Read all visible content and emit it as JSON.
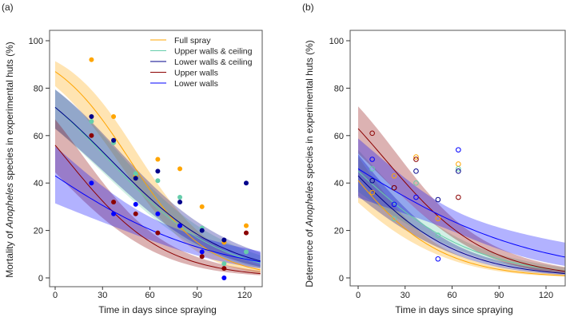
{
  "chart_data": [
    {
      "type": "line",
      "panel_label": "(a)",
      "xlabel": "Time in days since spraying",
      "ylabel_parts": [
        "Mortality of ",
        "Anopheles",
        " species in experimental huts (%)"
      ],
      "xlim": [
        -3,
        130
      ],
      "ylim": [
        0,
        100
      ],
      "xticks": [
        0,
        30,
        60,
        90,
        120
      ],
      "yticks": [
        0,
        20,
        40,
        60,
        80,
        100
      ],
      "point_style": "filled",
      "legend": {
        "placement": "top-right"
      },
      "series": [
        {
          "name": "Full spray",
          "color": "#FFA500",
          "fit_logit": {
            "intercept": 1.9,
            "slope": -0.0404,
            "band_center": 0.3,
            "band_slope": 0.35
          },
          "x": [
            23,
            37,
            51,
            65,
            79,
            93,
            107,
            121
          ],
          "y": [
            92,
            68,
            43,
            50,
            46,
            30,
            15,
            22
          ]
        },
        {
          "name": "Upper walls & ceiling",
          "color": "#66CDAA",
          "fit_logit": {
            "intercept": 0.94,
            "slope": -0.028,
            "band_center": 0.28,
            "band_slope": 0.3
          },
          "x": [
            23,
            37,
            51,
            65,
            79,
            93,
            107,
            121
          ],
          "y": [
            66,
            57,
            44,
            41,
            34,
            21,
            6,
            11
          ]
        },
        {
          "name": "Lower walls & ceiling",
          "color": "#00008B",
          "fit_logit": {
            "intercept": 0.94,
            "slope": -0.027,
            "band_center": 0.28,
            "band_slope": 0.3
          },
          "x": [
            23,
            37,
            51,
            65,
            79,
            93,
            107,
            121
          ],
          "y": [
            68,
            58,
            42,
            45,
            32,
            20,
            16,
            40
          ]
        },
        {
          "name": "Upper walls",
          "color": "#8B0000",
          "fit_logit": {
            "intercept": 0.24,
            "slope": -0.0325,
            "band_center": 0.3,
            "band_slope": 0.35
          },
          "x": [
            23,
            37,
            51,
            65,
            79,
            93,
            107,
            121
          ],
          "y": [
            60,
            32,
            27,
            19,
            22,
            9,
            4,
            19
          ]
        },
        {
          "name": "Lower walls",
          "color": "#0000FF",
          "fit_logit": {
            "intercept": -0.28,
            "slope": -0.018,
            "band_center": 0.3,
            "band_slope": 0.4
          },
          "x": [
            23,
            37,
            51,
            65,
            79,
            93,
            107
          ],
          "y": [
            40,
            27,
            31,
            27,
            22,
            11,
            0
          ]
        }
      ]
    },
    {
      "type": "line",
      "panel_label": "(b)",
      "xlabel": "Time in days since spraying",
      "ylabel_parts": [
        "Deterrence of ",
        "Anopheles",
        " species in experimental huts (%)"
      ],
      "xlim": [
        -6,
        132
      ],
      "ylim": [
        0,
        100
      ],
      "xticks": [
        0,
        30,
        60,
        90,
        120
      ],
      "yticks": [
        0,
        20,
        40,
        60,
        80,
        100
      ],
      "point_style": "open",
      "series": [
        {
          "name": "Full spray",
          "color": "#FFA500",
          "fit_logit": {
            "intercept": -0.36,
            "slope": -0.0326,
            "band_center": 0.2,
            "band_slope": 0.35
          },
          "x": [
            9,
            23,
            37,
            51,
            64
          ],
          "y": [
            36,
            43,
            51,
            25,
            48
          ]
        },
        {
          "name": "Upper walls & ceiling",
          "color": "#66CDAA",
          "fit_logit": {
            "intercept": -0.2,
            "slope": -0.025,
            "band_center": 0.2,
            "band_slope": 0.3
          },
          "x": [
            9,
            23,
            37,
            51,
            64
          ],
          "y": [
            46,
            25,
            40,
            18,
            46
          ]
        },
        {
          "name": "Lower walls & ceiling",
          "color": "#00008B",
          "fit_logit": {
            "intercept": -0.28,
            "slope": -0.028,
            "band_center": 0.2,
            "band_slope": 0.3
          },
          "x": [
            9,
            23,
            37,
            51,
            64
          ],
          "y": [
            41,
            38,
            45,
            33,
            45
          ]
        },
        {
          "name": "Upper walls",
          "color": "#8B0000",
          "fit_logit": {
            "intercept": 0.53,
            "slope": -0.0308,
            "band_center": 0.25,
            "band_slope": 0.35
          },
          "x": [
            9,
            23,
            37,
            64
          ],
          "y": [
            61,
            38,
            50,
            34
          ]
        },
        {
          "name": "Lower walls",
          "color": "#0000FF",
          "fit_logit": {
            "intercept": -0.16,
            "slope": -0.0165,
            "band_center": 0.25,
            "band_slope": 0.45
          },
          "x": [
            9,
            23,
            37,
            51,
            64
          ],
          "y": [
            50,
            31,
            34,
            8,
            54
          ]
        }
      ]
    }
  ]
}
